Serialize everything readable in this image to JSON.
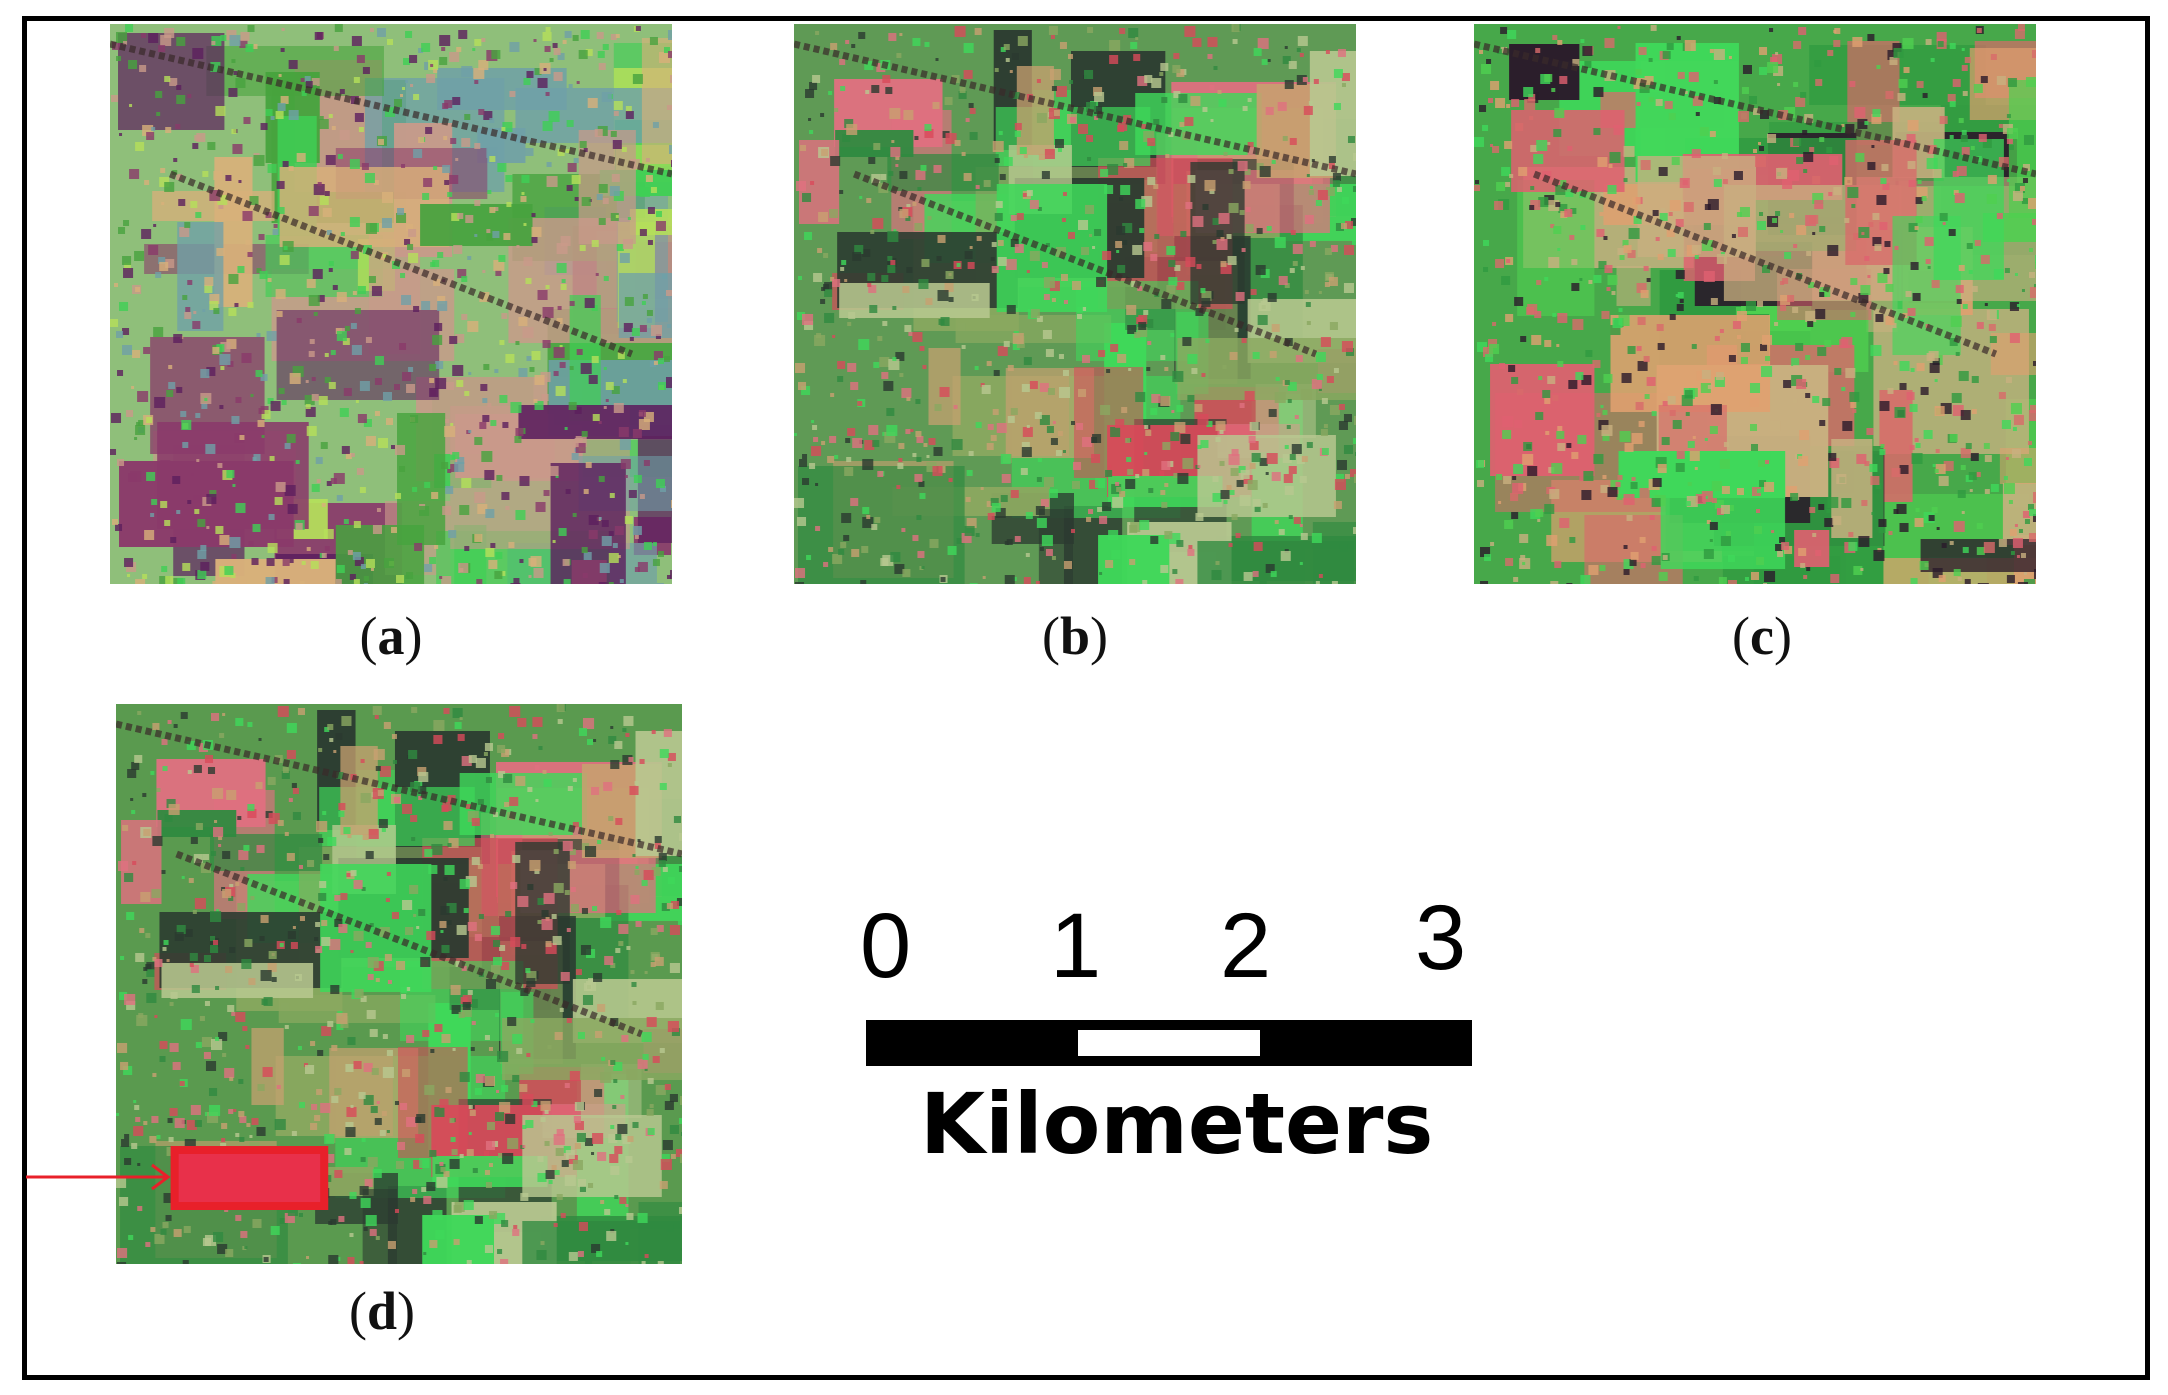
{
  "panels": [
    {
      "id": "a",
      "label": "(a)",
      "label_letter": "a",
      "base": "#8fbf7a",
      "palette": [
        "#5c1f5e",
        "#47a33e",
        "#b5e05a",
        "#c99a8a",
        "#6fa0a8",
        "#3fcf55",
        "#8a3a6a",
        "#d8b07a"
      ]
    },
    {
      "id": "b",
      "label": "(b)",
      "label_letter": "b",
      "base": "#5f9a55",
      "palette": [
        "#2f8a40",
        "#d84a5a",
        "#8aa860",
        "#c8a070",
        "#3fd85a",
        "#2b3a30",
        "#e07080",
        "#b8c890"
      ]
    },
    {
      "id": "c",
      "label": "(c)",
      "label_letter": "c",
      "base": "#47a84a",
      "palette": [
        "#2f9a40",
        "#e0a070",
        "#d86a6a",
        "#3fd85a",
        "#2a1a2a",
        "#c8b080",
        "#4fcf50",
        "#e06070"
      ]
    },
    {
      "id": "d",
      "label": "(d)",
      "label_letter": "d",
      "base": "#5a9a4f",
      "palette": [
        "#2f8a40",
        "#d84a5a",
        "#8aa860",
        "#c8a070",
        "#3fd85a",
        "#2b3a30",
        "#e07080",
        "#b8c890"
      ]
    }
  ],
  "highlight": {
    "color": "#e8202a"
  },
  "scale_bar": {
    "ticks": [
      "0",
      "1",
      "2",
      "3"
    ],
    "unit": "Kilometers"
  }
}
